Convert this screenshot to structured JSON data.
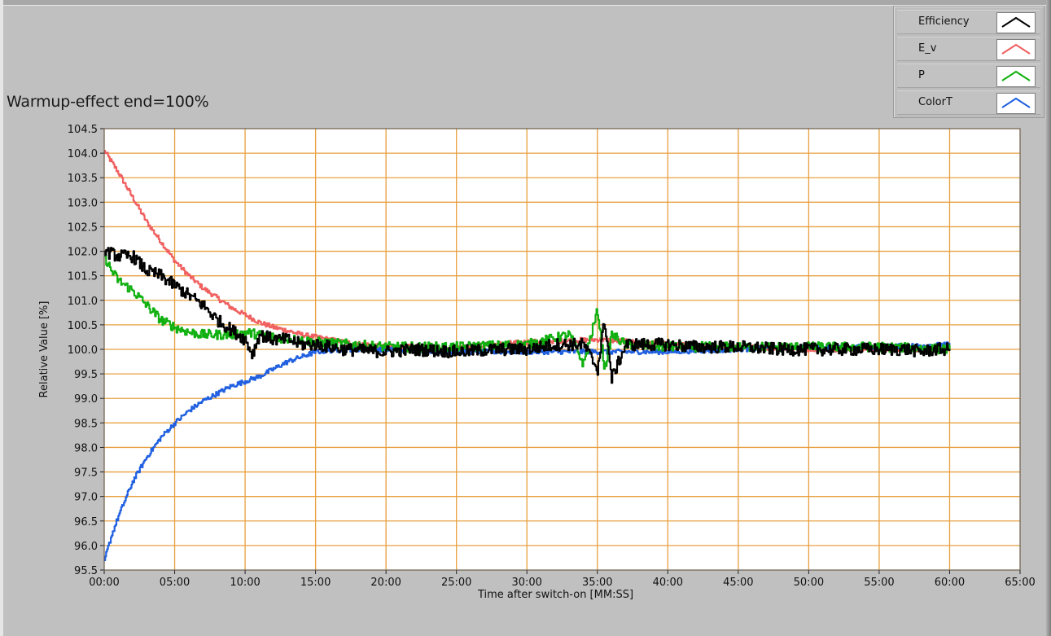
{
  "graph": {
    "title": "Warmup-effect end=100%"
  },
  "legend": {
    "items": [
      {
        "label": "Efficiency",
        "color": "#000000"
      },
      {
        "label": "E_v",
        "color": "#f06060"
      },
      {
        "label": "P",
        "color": "#10b010"
      },
      {
        "label": "ColorT",
        "color": "#1f5fe0"
      }
    ]
  },
  "chart_data": {
    "type": "line",
    "title": "",
    "xlabel": "Time after switch-on [MM:SS]",
    "ylabel": "Relative Value [%]",
    "xlim": [
      0,
      65
    ],
    "ylim": [
      95.5,
      104.5
    ],
    "x_ticks": [
      "00:00",
      "05:00",
      "10:00",
      "15:00",
      "20:00",
      "25:00",
      "30:00",
      "35:00",
      "40:00",
      "45:00",
      "50:00",
      "55:00",
      "60:00",
      "65:00"
    ],
    "y_ticks": [
      "104.5",
      "104.0",
      "103.5",
      "103.0",
      "102.5",
      "102.0",
      "101.5",
      "101.0",
      "100.5",
      "100.0",
      "99.5",
      "99.0",
      "98.5",
      "98.0",
      "97.5",
      "97.0",
      "96.5",
      "96.0",
      "95.5"
    ],
    "grid": true,
    "grid_color": "#e8a040",
    "plot_background": "#ffffff",
    "legend_position": "top-right",
    "x_unit": "minutes after switch-on",
    "series": [
      {
        "name": "Efficiency",
        "color": "#000000",
        "x": [
          0,
          1,
          2,
          3,
          4,
          5,
          6,
          7,
          8,
          9,
          10,
          10.5,
          11,
          12,
          13,
          14,
          15,
          17,
          20,
          22,
          25,
          28,
          30,
          32,
          34,
          35,
          35.5,
          36,
          37,
          38,
          40,
          42,
          45,
          48,
          50,
          52,
          55,
          57,
          58,
          59,
          60
        ],
        "y": [
          102.0,
          101.9,
          101.9,
          101.6,
          101.5,
          101.3,
          101.1,
          100.9,
          100.6,
          100.4,
          100.2,
          99.9,
          100.3,
          100.2,
          100.2,
          100.1,
          100.1,
          100.0,
          99.95,
          100.0,
          99.95,
          100.0,
          100.0,
          100.1,
          100.1,
          99.6,
          100.6,
          99.4,
          100.1,
          100.1,
          100.1,
          100.05,
          100.05,
          100.0,
          100.0,
          100.0,
          100.0,
          100.0,
          99.95,
          100.0,
          100.0
        ],
        "noise": 0.13
      },
      {
        "name": "E_v",
        "color": "#f06060",
        "x": [
          0,
          1,
          2,
          3,
          4,
          5,
          6,
          7,
          8,
          9,
          10,
          11,
          12,
          13,
          14,
          15,
          17,
          20,
          25,
          30,
          35,
          40,
          45,
          50,
          55,
          60
        ],
        "y": [
          104.05,
          103.6,
          103.1,
          102.6,
          102.2,
          101.8,
          101.5,
          101.25,
          101.05,
          100.85,
          100.7,
          100.55,
          100.45,
          100.38,
          100.3,
          100.25,
          100.15,
          100.05,
          100.05,
          100.15,
          100.2,
          100.1,
          100.05,
          100.0,
          100.0,
          100.0
        ],
        "noise": 0.05
      },
      {
        "name": "P",
        "color": "#10b010",
        "x": [
          0,
          0.5,
          1,
          2,
          3,
          4,
          5,
          6,
          7,
          8,
          9,
          10,
          12,
          15,
          20,
          25,
          30,
          33,
          34,
          35,
          35.5,
          36,
          37,
          40,
          45,
          50,
          55,
          60
        ],
        "y": [
          101.9,
          101.6,
          101.4,
          101.2,
          100.9,
          100.6,
          100.45,
          100.35,
          100.3,
          100.3,
          100.3,
          100.35,
          100.25,
          100.15,
          100.05,
          100.05,
          100.1,
          100.3,
          99.7,
          100.8,
          99.6,
          100.3,
          100.1,
          100.05,
          100.05,
          100.05,
          100.05,
          100.0
        ],
        "noise": 0.1
      },
      {
        "name": "ColorT",
        "color": "#1f5fe0",
        "x": [
          0,
          0.5,
          1,
          1.5,
          2,
          3,
          4,
          5,
          6,
          7,
          8,
          9,
          10,
          11,
          12,
          13,
          14,
          15,
          17,
          20,
          25,
          30,
          35,
          40,
          45,
          50,
          55,
          60
        ],
        "y": [
          95.7,
          96.2,
          96.6,
          96.95,
          97.3,
          97.8,
          98.2,
          98.5,
          98.75,
          98.95,
          99.1,
          99.25,
          99.35,
          99.45,
          99.6,
          99.75,
          99.85,
          99.95,
          100.0,
          100.0,
          99.95,
          99.95,
          99.95,
          99.95,
          100.0,
          100.05,
          100.05,
          100.1
        ],
        "noise": 0.05
      }
    ]
  }
}
